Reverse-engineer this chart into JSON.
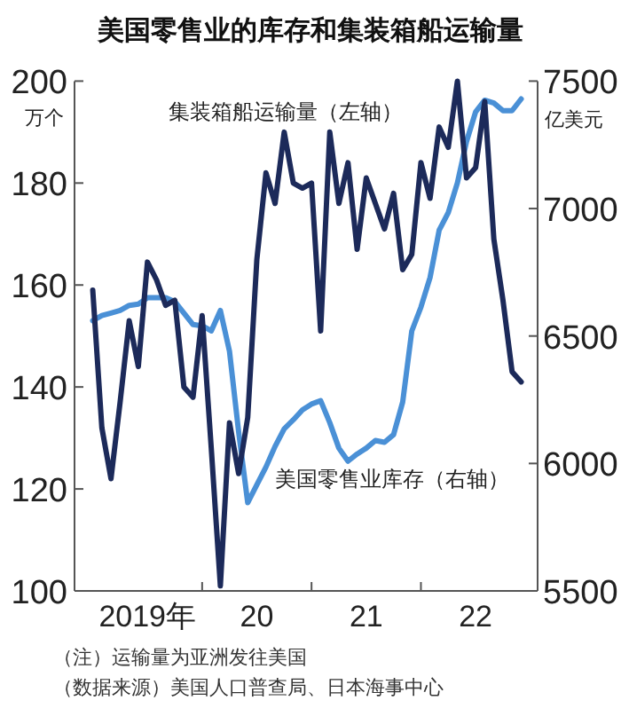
{
  "chart_data": {
    "type": "line",
    "title": "美国零售业的库存和集装箱船运输量",
    "ylabel": "万个",
    "y2label": "亿美元",
    "x": [
      "2019-01",
      "2019-02",
      "2019-03",
      "2019-04",
      "2019-05",
      "2019-06",
      "2019-07",
      "2019-08",
      "2019-09",
      "2019-10",
      "2019-11",
      "2019-12",
      "2020-01",
      "2020-02",
      "2020-03",
      "2020-04",
      "2020-05",
      "2020-06",
      "2020-07",
      "2020-08",
      "2020-09",
      "2020-10",
      "2020-11",
      "2020-12",
      "2021-01",
      "2021-02",
      "2021-03",
      "2021-04",
      "2021-05",
      "2021-06",
      "2021-07",
      "2021-08",
      "2021-09",
      "2021-10",
      "2021-11",
      "2021-12",
      "2022-01",
      "2022-02",
      "2022-03",
      "2022-04",
      "2022-05",
      "2022-06",
      "2022-07",
      "2022-08",
      "2022-09",
      "2022-10",
      "2022-11",
      "2022-12"
    ],
    "series": [
      {
        "name": "集装箱船运输量（左轴）",
        "color": "#1c2a5a",
        "values": [
          159,
          132,
          122,
          137,
          153,
          144,
          164.5,
          161,
          156,
          157,
          140,
          138,
          154,
          128,
          101,
          133,
          123,
          134,
          165,
          182,
          176,
          190,
          180,
          179,
          180,
          151,
          190,
          176,
          184,
          167,
          181,
          176,
          171,
          178,
          163,
          166,
          184,
          177,
          191,
          187,
          200,
          181,
          183,
          196,
          169,
          157,
          143,
          141
        ]
      },
      {
        "name": "美国零售业库存（右轴）",
        "color": "#4a90d6",
        "axis": "y2",
        "values": [
          6560,
          6580,
          6590,
          6600,
          6620,
          6625,
          6650,
          6650,
          6650,
          6635,
          6590,
          6545,
          6540,
          6520,
          6600,
          6440,
          6125,
          5846,
          5916,
          5986,
          6067,
          6136,
          6171,
          6210,
          6233,
          6246,
          6160,
          6060,
          6009,
          6037,
          6060,
          6090,
          6083,
          6113,
          6241,
          6520,
          6613,
          6729,
          6915,
          6984,
          7101,
          7263,
          7379,
          7425,
          7414,
          7384,
          7384,
          7430
        ]
      }
    ],
    "xlim": [
      "2018-11",
      "2023-01-25"
    ],
    "xticks": [
      {
        "value": "2019-07",
        "label": "2019年"
      },
      {
        "value": "2020-01",
        "label": null
      },
      {
        "value": "2020-07",
        "label": "20"
      },
      {
        "value": "2021-01",
        "label": null
      },
      {
        "value": "2021-07",
        "label": "21"
      },
      {
        "value": "2022-01",
        "label": null
      },
      {
        "value": "2022-07",
        "label": "22"
      }
    ],
    "ylim": [
      100,
      200
    ],
    "yticks": [
      100,
      120,
      140,
      160,
      180,
      200
    ],
    "y2lim": [
      5500,
      7500
    ],
    "y2ticks": [
      5500,
      6000,
      6500,
      7000,
      7500
    ],
    "grid": false,
    "annotations": [
      "（注）运输量为亚洲发往美国",
      "（数据来源）美国人口普查局、日本海事中心"
    ]
  }
}
